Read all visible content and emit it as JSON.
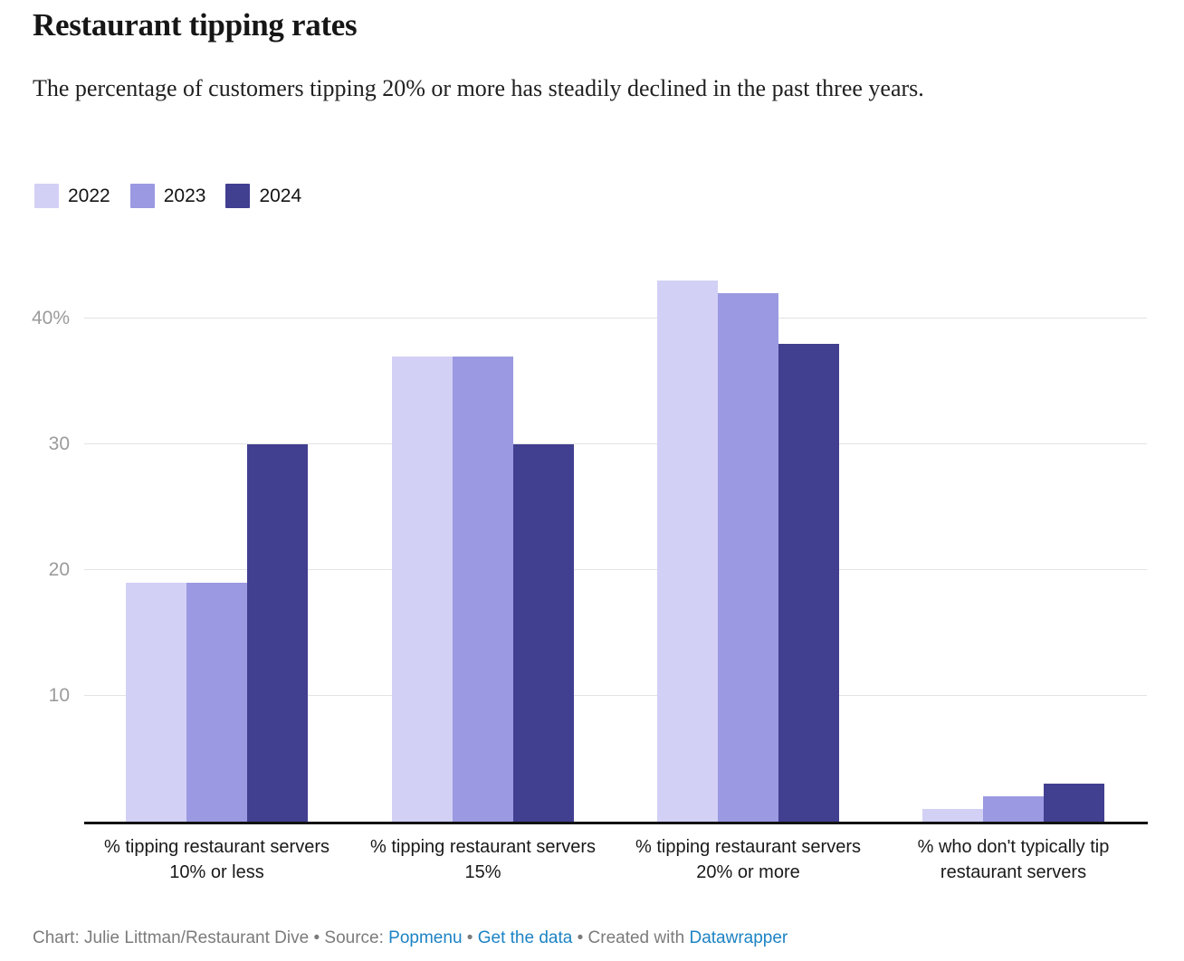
{
  "chart_data": {
    "type": "bar",
    "title": "Restaurant tipping rates",
    "subtitle": "The percentage of customers tipping 20% or more has steadily declined in the past three years.",
    "categories": [
      "% tipping restaurant servers 10% or less",
      "% tipping restaurant servers 15%",
      "% tipping restaurant servers 20% or more",
      "% who don't typically tip restaurant servers"
    ],
    "series": [
      {
        "name": "2022",
        "color": "#d2d0f5",
        "values": [
          19,
          37,
          43,
          1
        ]
      },
      {
        "name": "2023",
        "color": "#9b99e1",
        "values": [
          19,
          37,
          42,
          2
        ]
      },
      {
        "name": "2024",
        "color": "#413f90",
        "values": [
          30,
          30,
          38,
          3
        ]
      }
    ],
    "xlabel": "",
    "ylabel": "",
    "ylim": [
      0,
      43.5
    ],
    "yticks": [
      {
        "value": 10,
        "label": "10"
      },
      {
        "value": 20,
        "label": "20"
      },
      {
        "value": 30,
        "label": "30"
      },
      {
        "value": 40,
        "label": "40%"
      }
    ],
    "grid": true,
    "legend_position": "top-left"
  },
  "footer": {
    "credit": "Chart: Julie Littman/Restaurant Dive",
    "separator": "•",
    "source_label": "Source:",
    "source_link": "Popmenu",
    "data_link": "Get the data",
    "created_label": "Created with",
    "created_link": "Datawrapper"
  },
  "colors": {
    "link": "#1d83c4",
    "axis_line": "#131313",
    "gridline": "#e3e3e3",
    "tick_label": "#9b9b9b"
  }
}
